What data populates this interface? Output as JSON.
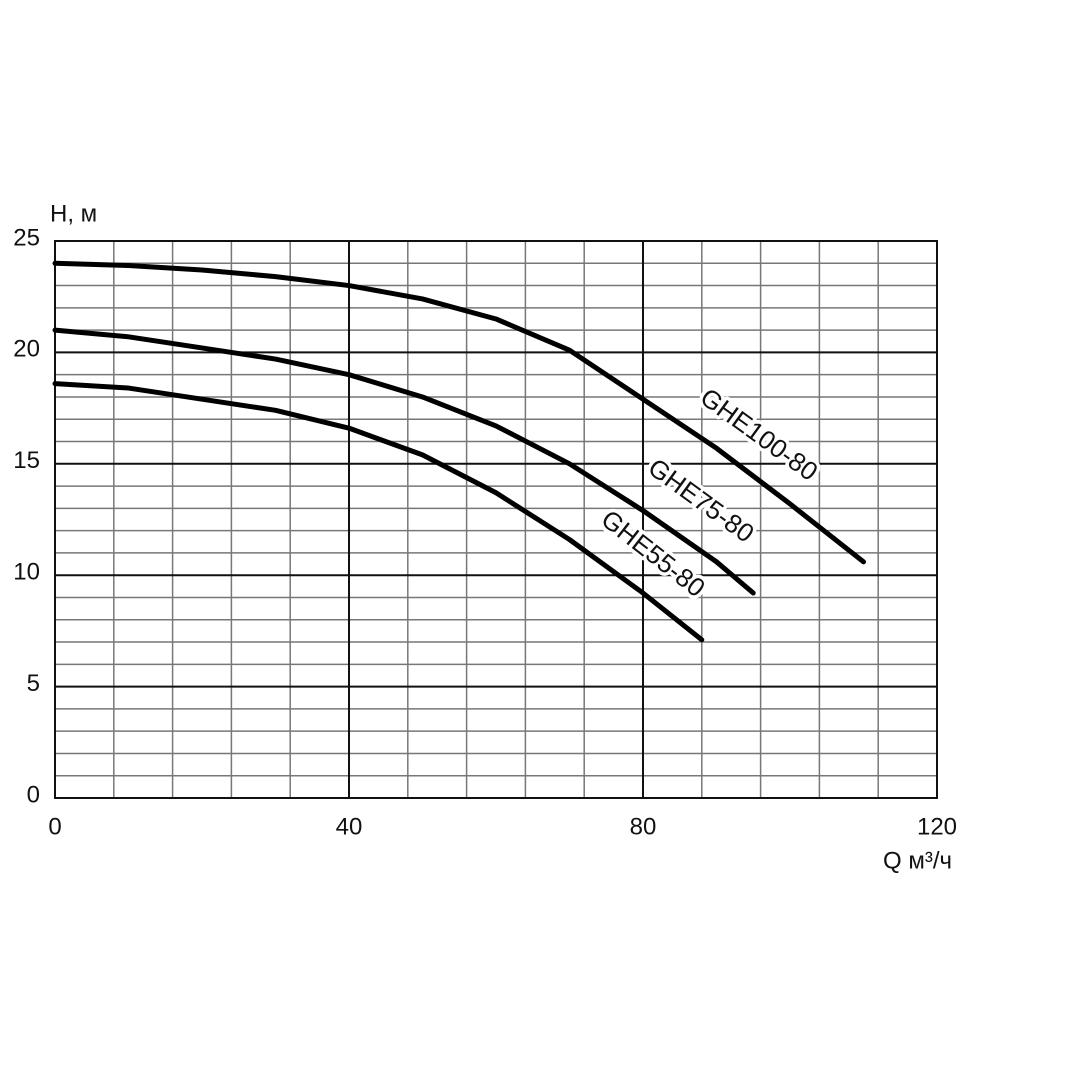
{
  "chart_data": {
    "type": "line",
    "y_label": "H, м",
    "x_label": "Q м³/ч",
    "xlim": [
      0,
      120
    ],
    "xticks": [
      0,
      40,
      80,
      120
    ],
    "ylim": [
      0,
      25
    ],
    "yticks": [
      0,
      5,
      10,
      15,
      20,
      25
    ],
    "grid": true,
    "minor_grid": {
      "x": 8,
      "y": 1
    },
    "series": [
      {
        "name": "GHE100-80",
        "color": "#000000",
        "x": [
          0,
          10,
          20,
          30,
          40,
          50,
          60,
          70,
          80,
          90,
          100,
          110
        ],
        "values": [
          24.0,
          23.9,
          23.7,
          23.4,
          23.0,
          22.4,
          21.5,
          20.1,
          17.9,
          15.7,
          13.2,
          10.6
        ]
      },
      {
        "name": "GHE75-80",
        "color": "#000000",
        "x": [
          0,
          10,
          20,
          30,
          40,
          50,
          60,
          70,
          80,
          90,
          95
        ],
        "values": [
          21.0,
          20.7,
          20.2,
          19.7,
          19.0,
          18.0,
          16.7,
          15.0,
          12.9,
          10.6,
          9.2
        ]
      },
      {
        "name": "GHE55-80",
        "color": "#000000",
        "x": [
          0,
          10,
          20,
          30,
          40,
          50,
          60,
          70,
          80,
          88
        ],
        "values": [
          18.6,
          18.4,
          17.9,
          17.4,
          16.6,
          15.4,
          13.7,
          11.6,
          9.2,
          7.1
        ]
      }
    ]
  }
}
